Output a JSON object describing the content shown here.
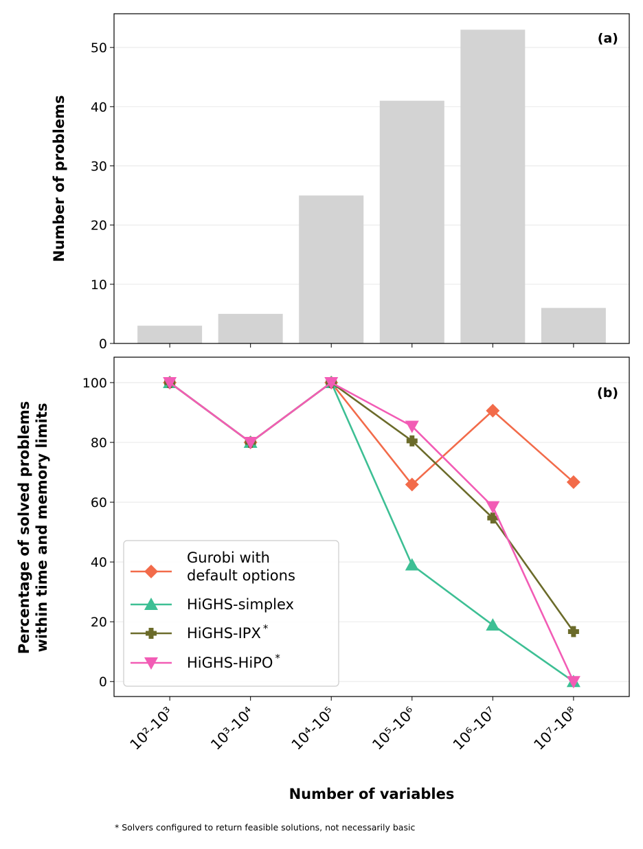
{
  "chart_data": [
    {
      "type": "bar",
      "panel_label": "(a)",
      "title": "",
      "xlabel": "",
      "ylabel": "Number of problems",
      "categories": [
        "10²-10³",
        "10³-10⁴",
        "10⁴-10⁵",
        "10⁵-10⁶",
        "10⁶-10⁷",
        "10⁷-10⁸"
      ],
      "values": [
        3,
        5,
        25,
        41,
        53,
        6
      ],
      "ylim": [
        0,
        55.7
      ],
      "yticks": [
        0,
        10,
        20,
        30,
        40,
        50
      ],
      "grid": "horizontal",
      "bar_color": "#d3d3d3"
    },
    {
      "type": "line",
      "panel_label": "(b)",
      "xlabel": "Number of variables",
      "ylabel": "Percentage of solved problems\nwithin time and memory limits",
      "ylabel_lines": [
        "Percentage of solved problems",
        "within time and memory limits"
      ],
      "categories": [
        "10²-10³",
        "10³-10⁴",
        "10⁴-10⁵",
        "10⁵-10⁶",
        "10⁶-10⁷",
        "10⁷-10⁸"
      ],
      "ylim": [
        -5,
        108.5
      ],
      "yticks": [
        0,
        20,
        40,
        60,
        80,
        100
      ],
      "grid": "horizontal",
      "legend_position": "lower-left",
      "series": [
        {
          "name": "Gurobi with default options",
          "legend_lines": [
            "Gurobi with",
            "default options"
          ],
          "marker": "diamond",
          "color": "#f26b4a",
          "values": [
            100,
            80,
            100,
            65.9,
            90.6,
            66.7
          ]
        },
        {
          "name": "HiGHS-simplex",
          "legend_lines": [
            "HiGHS-simplex"
          ],
          "marker": "triangle-up",
          "color": "#3dbf94",
          "values": [
            100,
            80,
            100,
            39.0,
            18.9,
            0
          ]
        },
        {
          "name": "HiGHS-IPX*",
          "legend_lines": [
            "HiGHS-IPX*"
          ],
          "marker": "plus",
          "color": "#6b6b2a",
          "values": [
            100,
            80,
            100,
            80.5,
            54.7,
            16.7
          ]
        },
        {
          "name": "HiGHS-HiPO*",
          "legend_lines": [
            "HiGHS-HiPO*"
          ],
          "marker": "triangle-down",
          "color": "#f25cb5",
          "values": [
            100,
            80,
            100,
            85.4,
            58.5,
            0
          ]
        }
      ]
    }
  ],
  "footnote": "* Solvers configured to return feasible solutions, not necessarily basic"
}
